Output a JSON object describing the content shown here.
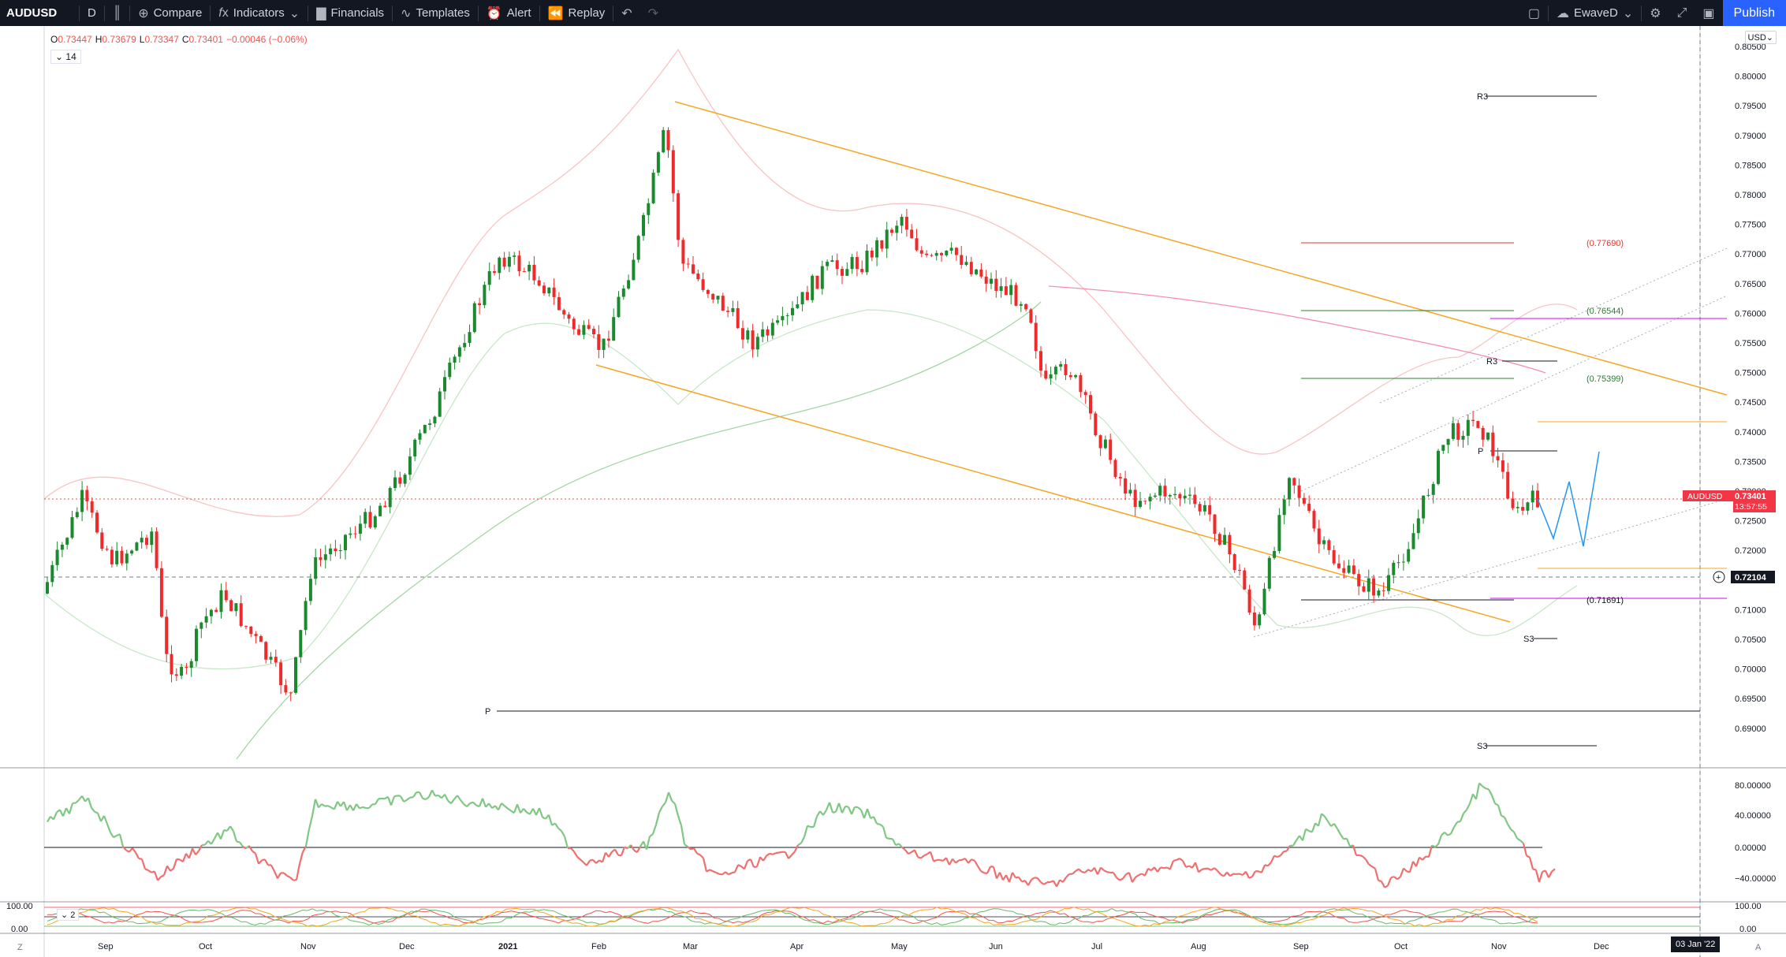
{
  "toolbar": {
    "symbol": "AUDUSD",
    "interval": "D",
    "compare": "Compare",
    "indicators": "Indicators",
    "financials": "Financials",
    "templates": "Templates",
    "alert": "Alert",
    "replay": "Replay",
    "user": "EwaveD",
    "publish": "Publish"
  },
  "ohlc": {
    "o_label": "O",
    "o": "0.73447",
    "h_label": "H",
    "h": "0.73679",
    "l_label": "L",
    "l": "0.73347",
    "c_label": "C",
    "c": "0.73401",
    "change": "−0.00046 (−0.06%)"
  },
  "indicator_legend": "14",
  "osc2_legend": "2",
  "currency": "USD",
  "price_axis": [
    "0.80500",
    "0.80000",
    "0.79500",
    "0.79000",
    "0.78500",
    "0.78000",
    "0.77500",
    "0.77000",
    "0.76500",
    "0.76000",
    "0.75500",
    "0.75000",
    "0.74500",
    "0.74000",
    "0.73500",
    "0.73000",
    "0.72500",
    "0.72000",
    "0.71500",
    "0.71000",
    "0.70500",
    "0.70000",
    "0.69500",
    "0.69000"
  ],
  "price_tag": {
    "symbol": "AUDUSD",
    "price": "0.73401",
    "countdown": "13:57:55"
  },
  "crosshair_price": "0.72104",
  "osc1_axis": [
    "80.00000",
    "40.00000",
    "0.00000",
    "−40.00000"
  ],
  "osc2_axis": [
    "100.00",
    "0.00"
  ],
  "osc2_axis_right": [
    "100.00",
    "0.00"
  ],
  "time_axis": [
    "Sep",
    "Oct",
    "Nov",
    "Dec",
    "2021",
    "Feb",
    "Mar",
    "Apr",
    "May",
    "Jun",
    "Jul",
    "Aug",
    "Sep",
    "Oct",
    "Nov",
    "Dec"
  ],
  "crosshair_date": "03 Jan '22",
  "pivot_labels": {
    "r3_top": "R3",
    "p_main": "P",
    "s3_bottom": "S3",
    "r3_small": "R3",
    "p_small": "P",
    "s3_small": "S3"
  },
  "fib_levels": [
    "(0.77690)",
    "(0.76544)",
    "(0.75399)",
    "(0.71691)"
  ],
  "corner_left": "Z",
  "corner_right": "A",
  "colors": {
    "up": "#1b8a2e",
    "down": "#f02a2a",
    "channel": "#f5a623",
    "accent": "#2962ff"
  }
}
